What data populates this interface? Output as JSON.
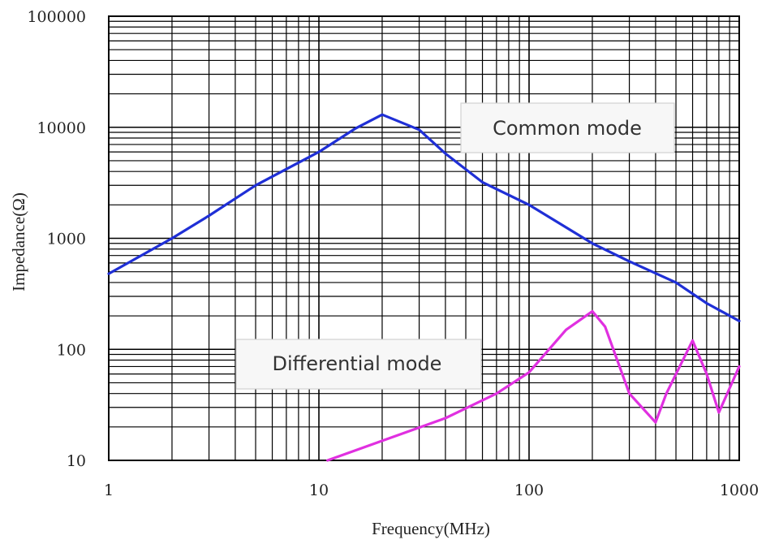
{
  "chart_data": {
    "type": "line",
    "xlabel": "Frequency(MHz)",
    "ylabel": "Impedance(Ω)",
    "xscale": "log",
    "yscale": "log",
    "xlim": [
      1,
      1000
    ],
    "ylim": [
      10,
      100000
    ],
    "grid": true,
    "x_ticks": [
      "1",
      "10",
      "100",
      "1000"
    ],
    "y_ticks": [
      "10",
      "100",
      "1000",
      "10000",
      "100000"
    ],
    "series": [
      {
        "name": "Common mode",
        "color": "#1f2fd6",
        "points": [
          [
            1,
            480
          ],
          [
            2,
            1000
          ],
          [
            3,
            1600
          ],
          [
            5,
            3000
          ],
          [
            8,
            4800
          ],
          [
            10,
            6000
          ],
          [
            15,
            9800
          ],
          [
            20,
            13000
          ],
          [
            30,
            9500
          ],
          [
            40,
            5800
          ],
          [
            60,
            3200
          ],
          [
            100,
            2000
          ],
          [
            200,
            900
          ],
          [
            300,
            620
          ],
          [
            500,
            400
          ],
          [
            700,
            260
          ],
          [
            1000,
            180
          ]
        ]
      },
      {
        "name": "Differential mode",
        "color": "#e030e0",
        "points": [
          [
            11,
            10
          ],
          [
            20,
            15
          ],
          [
            40,
            24
          ],
          [
            70,
            40
          ],
          [
            100,
            62
          ],
          [
            150,
            150
          ],
          [
            200,
            220
          ],
          [
            230,
            160
          ],
          [
            300,
            40
          ],
          [
            400,
            22
          ],
          [
            450,
            40
          ],
          [
            600,
            120
          ],
          [
            700,
            60
          ],
          [
            800,
            27
          ],
          [
            1000,
            70
          ]
        ]
      }
    ]
  }
}
